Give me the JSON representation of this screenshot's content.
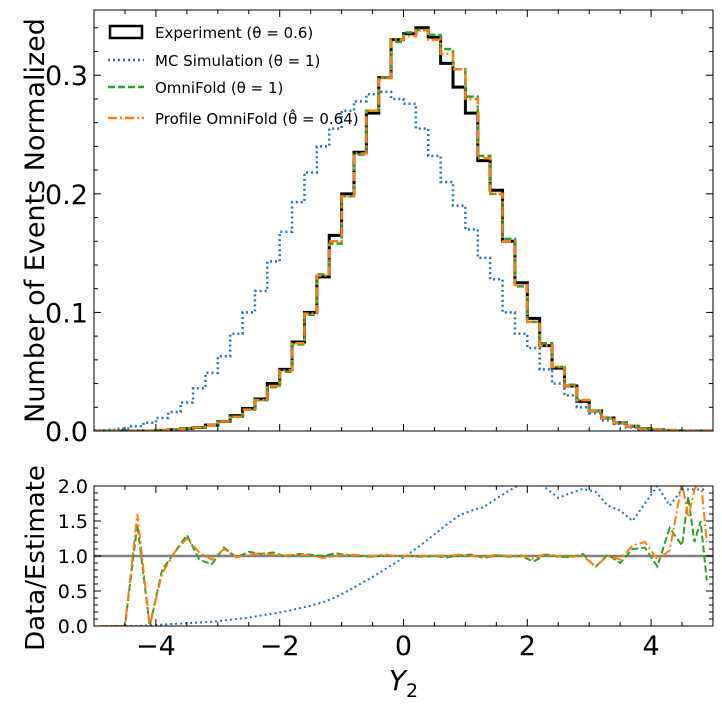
{
  "chart_data": [
    {
      "type": "line",
      "panel": "main",
      "ylabel": "Number of Events Normalized",
      "xlabel": "",
      "xlim": [
        -5,
        5
      ],
      "ylim": [
        0,
        0.355
      ],
      "yticks": [
        0.0,
        0.1,
        0.2,
        0.3
      ],
      "ytick_labels": [
        "0.0",
        "0.1",
        "0.2",
        "0.3"
      ],
      "bin_edges": [
        -5.0,
        -4.8,
        -4.6,
        -4.4,
        -4.2,
        -4.0,
        -3.8,
        -3.6,
        -3.4,
        -3.2,
        -3.0,
        -2.8,
        -2.6,
        -2.4,
        -2.2,
        -2.0,
        -1.8,
        -1.6,
        -1.4,
        -1.2,
        -1.0,
        -0.8,
        -0.6,
        -0.4,
        -0.2,
        0.0,
        0.2,
        0.4,
        0.6,
        0.8,
        1.0,
        1.2,
        1.4,
        1.6,
        1.8,
        2.0,
        2.2,
        2.4,
        2.6,
        2.8,
        3.0,
        3.2,
        3.4,
        3.6,
        3.8,
        4.0,
        4.2,
        4.4,
        4.6,
        4.8,
        5.0
      ],
      "series": [
        {
          "name": "Experiment (θ = 0.6)",
          "color": "#000000",
          "style": "solid",
          "values": [
            0.0,
            0.0,
            0.0,
            0.0,
            0.0,
            0.0005,
            0.001,
            0.002,
            0.003,
            0.005,
            0.008,
            0.013,
            0.019,
            0.027,
            0.04,
            0.052,
            0.075,
            0.1,
            0.13,
            0.165,
            0.2,
            0.235,
            0.268,
            0.298,
            0.33,
            0.335,
            0.34,
            0.332,
            0.31,
            0.29,
            0.268,
            0.228,
            0.203,
            0.16,
            0.125,
            0.095,
            0.072,
            0.053,
            0.038,
            0.025,
            0.017,
            0.011,
            0.007,
            0.004,
            0.002,
            0.001,
            0.0005,
            0.0,
            0.0,
            0.0
          ]
        },
        {
          "name": "MC Simulation (θ = 1)",
          "color": "#1f77b4",
          "style": "dotted",
          "values": [
            0.0005,
            0.001,
            0.002,
            0.004,
            0.007,
            0.011,
            0.016,
            0.024,
            0.036,
            0.049,
            0.063,
            0.082,
            0.1,
            0.118,
            0.143,
            0.168,
            0.193,
            0.218,
            0.24,
            0.255,
            0.27,
            0.278,
            0.284,
            0.286,
            0.28,
            0.276,
            0.255,
            0.232,
            0.21,
            0.19,
            0.17,
            0.146,
            0.128,
            0.1,
            0.082,
            0.07,
            0.052,
            0.04,
            0.03,
            0.02,
            0.015,
            0.009,
            0.006,
            0.003,
            0.0015,
            0.001,
            0.0005,
            0.0,
            0.0,
            0.0
          ]
        },
        {
          "name": "OmniFold (θ = 1)",
          "color": "#2ca02c",
          "style": "dashed",
          "values": [
            0.0,
            0.0,
            0.0,
            0.0,
            0.0,
            0.0005,
            0.001,
            0.002,
            0.003,
            0.005,
            0.008,
            0.012,
            0.018,
            0.026,
            0.037,
            0.05,
            0.073,
            0.098,
            0.132,
            0.158,
            0.198,
            0.233,
            0.27,
            0.298,
            0.328,
            0.336,
            0.338,
            0.334,
            0.322,
            0.305,
            0.282,
            0.232,
            0.2,
            0.162,
            0.122,
            0.092,
            0.074,
            0.054,
            0.039,
            0.026,
            0.017,
            0.011,
            0.007,
            0.004,
            0.002,
            0.001,
            0.0005,
            0.0,
            0.0,
            0.0
          ]
        },
        {
          "name": "Profile OmniFold (θ̂ = 0.64)",
          "color": "#ff7f0e",
          "style": "dashdot",
          "values": [
            0.0,
            0.0,
            0.0,
            0.0,
            0.0,
            0.0005,
            0.001,
            0.002,
            0.003,
            0.005,
            0.008,
            0.012,
            0.018,
            0.026,
            0.038,
            0.051,
            0.074,
            0.099,
            0.131,
            0.16,
            0.198,
            0.234,
            0.27,
            0.298,
            0.33,
            0.333,
            0.338,
            0.33,
            0.318,
            0.305,
            0.28,
            0.23,
            0.2,
            0.16,
            0.123,
            0.092,
            0.072,
            0.054,
            0.038,
            0.026,
            0.017,
            0.011,
            0.007,
            0.004,
            0.002,
            0.001,
            0.0005,
            0.0,
            0.0,
            0.0
          ]
        }
      ],
      "legend": [
        "Experiment (θ = 0.6)",
        "MC Simulation (θ = 1)",
        "OmniFold (θ = 1)",
        "Profile OmniFold (θ̂ = 0.64)"
      ],
      "legend_position": "top-left"
    },
    {
      "type": "line",
      "panel": "ratio",
      "ylabel": "Data/Estimate",
      "xlabel": "Y2",
      "xlim": [
        -5,
        5
      ],
      "ylim": [
        0,
        2
      ],
      "xticks": [
        -4,
        -2,
        0,
        2,
        4
      ],
      "xtick_labels": [
        "−4",
        "−2",
        "0",
        "2",
        "4"
      ],
      "yticks": [
        0.0,
        0.5,
        1.0,
        1.5,
        2.0
      ],
      "ytick_labels": [
        "0.0",
        "0.5",
        "1.0",
        "1.5",
        "2.0"
      ],
      "reference_line": 1.0,
      "reference_color": "#808080",
      "x": [
        -4.9,
        -4.7,
        -4.5,
        -4.3,
        -4.1,
        -3.9,
        -3.7,
        -3.5,
        -3.3,
        -3.1,
        -2.9,
        -2.7,
        -2.5,
        -2.3,
        -2.1,
        -1.9,
        -1.7,
        -1.5,
        -1.3,
        -1.1,
        -0.9,
        -0.7,
        -0.5,
        -0.3,
        -0.1,
        0.1,
        0.3,
        0.5,
        0.7,
        0.9,
        1.1,
        1.3,
        1.5,
        1.7,
        1.9,
        2.1,
        2.3,
        2.5,
        2.7,
        2.9,
        3.1,
        3.3,
        3.5,
        3.7,
        3.9,
        4.1,
        4.3,
        4.5,
        4.6,
        4.7,
        4.8,
        4.9
      ],
      "series": [
        {
          "name": "MC Simulation (θ = 1)",
          "color": "#1f77b4",
          "style": "dotted",
          "values": [
            0.0,
            0.0,
            0.0,
            0.0,
            0.01,
            0.02,
            0.03,
            0.04,
            0.05,
            0.06,
            0.08,
            0.1,
            0.12,
            0.15,
            0.18,
            0.21,
            0.25,
            0.29,
            0.34,
            0.41,
            0.5,
            0.6,
            0.7,
            0.81,
            0.92,
            1.04,
            1.17,
            1.31,
            1.45,
            1.58,
            1.65,
            1.7,
            1.82,
            1.93,
            2.03,
            2.1,
            1.97,
            1.83,
            1.9,
            1.96,
            1.92,
            1.72,
            1.65,
            1.5,
            1.75,
            2.0,
            1.72,
            1.95,
            1.95,
            1.95,
            1.95,
            1.95
          ]
        },
        {
          "name": "OmniFold (θ = 1)",
          "color": "#2ca02c",
          "style": "dashed",
          "values": [
            0.0,
            0.0,
            0.0,
            1.45,
            0.0,
            0.8,
            1.05,
            1.3,
            0.95,
            0.88,
            1.12,
            0.98,
            1.06,
            1.03,
            1.05,
            0.99,
            1.03,
            1.02,
            1.0,
            1.04,
            1.01,
            1.0,
            0.99,
            1.01,
            1.0,
            1.0,
            0.99,
            1.0,
            0.98,
            1.01,
            1.02,
            0.97,
            1.01,
            0.99,
            1.0,
            0.92,
            1.02,
            0.99,
            0.98,
            1.03,
            0.84,
            1.02,
            0.9,
            1.1,
            1.12,
            0.85,
            1.4,
            1.15,
            1.85,
            1.2,
            1.5,
            0.65
          ]
        },
        {
          "name": "Profile OmniFold (θ̂ = 0.64)",
          "color": "#ff7f0e",
          "style": "dashdot",
          "values": [
            0.0,
            0.0,
            0.0,
            1.6,
            0.0,
            0.75,
            1.05,
            1.25,
            1.05,
            0.95,
            1.1,
            0.98,
            1.02,
            1.04,
            1.02,
            1.01,
            1.02,
            1.01,
            0.97,
            1.0,
            1.02,
            1.01,
            1.0,
            1.02,
            1.0,
            1.01,
            1.0,
            1.01,
            1.0,
            1.02,
            1.0,
            0.98,
            1.02,
            1.0,
            1.01,
            0.96,
            1.03,
            1.0,
            0.99,
            1.0,
            0.85,
            1.0,
            0.95,
            1.15,
            1.2,
            0.95,
            1.08,
            2.05,
            1.55,
            1.95,
            2.1,
            1.2
          ]
        }
      ]
    }
  ]
}
